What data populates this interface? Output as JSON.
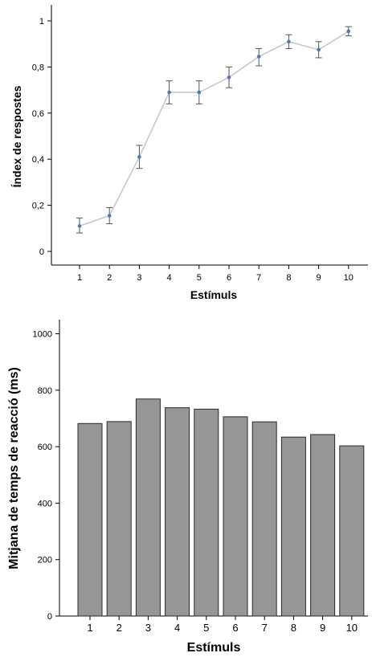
{
  "chart_data": [
    {
      "type": "line",
      "xlabel": "Estímuls",
      "ylabel": "Índex de respostes",
      "categories": [
        "1",
        "2",
        "3",
        "4",
        "5",
        "6",
        "7",
        "8",
        "9",
        "10"
      ],
      "values": [
        0.11,
        0.155,
        0.41,
        0.69,
        0.69,
        0.755,
        0.845,
        0.91,
        0.875,
        0.955
      ],
      "error_low": [
        0.08,
        0.12,
        0.36,
        0.64,
        0.64,
        0.71,
        0.805,
        0.88,
        0.84,
        0.935
      ],
      "error_high": [
        0.145,
        0.19,
        0.46,
        0.74,
        0.74,
        0.8,
        0.88,
        0.94,
        0.91,
        0.975
      ],
      "ylim": [
        0,
        1
      ],
      "yticks": [
        "0",
        "0,2",
        "0,4",
        "0,6",
        "0,8",
        "1"
      ],
      "ytick_values": [
        0,
        0.2,
        0.4,
        0.6,
        0.8,
        1
      ],
      "grid": false,
      "colors": {
        "line": "#c8c8c8",
        "marker": "#5a74b4",
        "errorbar": "#555555"
      }
    },
    {
      "type": "bar",
      "xlabel": "Estímuls",
      "ylabel": "Mitjana de temps de reacció (ms)",
      "categories": [
        "1",
        "2",
        "3",
        "4",
        "5",
        "6",
        "7",
        "8",
        "9",
        "10"
      ],
      "values": [
        682,
        689,
        769,
        738,
        733,
        706,
        688,
        634,
        643,
        603
      ],
      "ylim": [
        0,
        1050
      ],
      "yticks": [
        "0",
        "200",
        "400",
        "600",
        "800",
        "1000"
      ],
      "ytick_values": [
        0,
        200,
        400,
        600,
        800,
        1000
      ],
      "grid": false,
      "colors": {
        "bar": "#969696",
        "bar_edge": "#2a2a2a"
      }
    }
  ]
}
